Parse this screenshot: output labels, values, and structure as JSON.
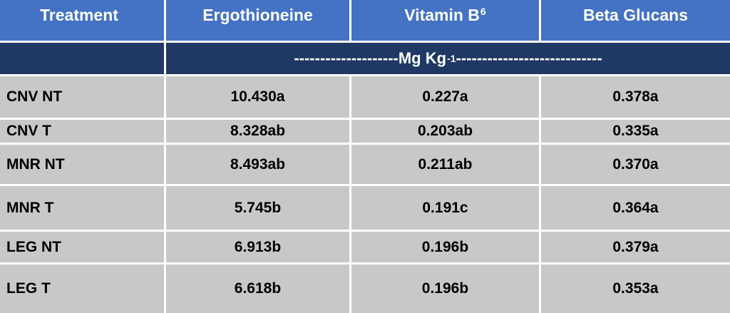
{
  "table": {
    "headers": {
      "treatment": "Treatment",
      "ergothioneine": "Ergothioneine",
      "vitamin_b6_main": "Vitamin B",
      "vitamin_b6_sub": "6",
      "beta_glucans": "Beta Glucans"
    },
    "units": {
      "left_dashes": "--------------------",
      "unit_main": "Mg Kg",
      "unit_sup": "-1",
      "right_dashes": "----------------------------"
    },
    "rows": [
      {
        "treatment": "CNV NT",
        "ergothioneine": "10.430a",
        "vitamin_b6": "0.227a",
        "beta_glucans": "0.378a"
      },
      {
        "treatment": "CNV T",
        "ergothioneine": "8.328ab",
        "vitamin_b6": "0.203ab",
        "beta_glucans": "0.335a"
      },
      {
        "treatment": "MNR NT",
        "ergothioneine": "8.493ab",
        "vitamin_b6": "0.211ab",
        "beta_glucans": "0.370a"
      },
      {
        "treatment": "MNR T",
        "ergothioneine": "5.745b",
        "vitamin_b6": "0.191c",
        "beta_glucans": "0.364a"
      },
      {
        "treatment": "LEG NT",
        "ergothioneine": "6.913b",
        "vitamin_b6": "0.196b",
        "beta_glucans": "0.379a"
      },
      {
        "treatment": "LEG T",
        "ergothioneine": "6.618b",
        "vitamin_b6": "0.196b",
        "beta_glucans": "0.353a"
      }
    ]
  }
}
